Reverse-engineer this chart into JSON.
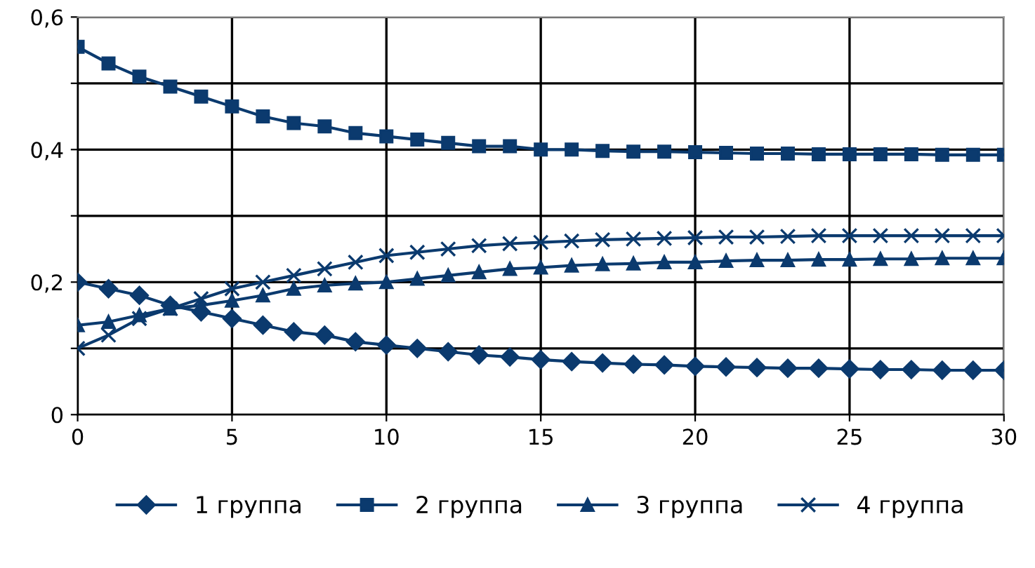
{
  "chart_data": {
    "type": "line",
    "x": [
      0,
      1,
      2,
      3,
      4,
      5,
      6,
      7,
      8,
      9,
      10,
      11,
      12,
      13,
      14,
      15,
      16,
      17,
      18,
      19,
      20,
      21,
      22,
      23,
      24,
      25,
      26,
      27,
      28,
      29,
      30
    ],
    "series": [
      {
        "name": "1 группа",
        "color": "#0b3a6e",
        "marker": "diamond",
        "values": [
          0.2,
          0.19,
          0.18,
          0.165,
          0.155,
          0.145,
          0.135,
          0.125,
          0.12,
          0.11,
          0.105,
          0.1,
          0.095,
          0.09,
          0.087,
          0.083,
          0.08,
          0.078,
          0.076,
          0.075,
          0.073,
          0.072,
          0.071,
          0.07,
          0.07,
          0.069,
          0.068,
          0.068,
          0.067,
          0.067,
          0.067
        ]
      },
      {
        "name": "2 группа",
        "color": "#0b3a6e",
        "marker": "square",
        "values": [
          0.555,
          0.53,
          0.51,
          0.495,
          0.48,
          0.465,
          0.45,
          0.44,
          0.435,
          0.425,
          0.42,
          0.415,
          0.41,
          0.405,
          0.405,
          0.4,
          0.4,
          0.398,
          0.397,
          0.397,
          0.396,
          0.395,
          0.394,
          0.394,
          0.393,
          0.393,
          0.393,
          0.393,
          0.392,
          0.392,
          0.392
        ]
      },
      {
        "name": "3 группа",
        "color": "#0b3a6e",
        "marker": "triangle",
        "values": [
          0.135,
          0.14,
          0.15,
          0.16,
          0.165,
          0.172,
          0.18,
          0.19,
          0.195,
          0.198,
          0.2,
          0.205,
          0.21,
          0.215,
          0.22,
          0.222,
          0.225,
          0.227,
          0.228,
          0.23,
          0.23,
          0.232,
          0.233,
          0.233,
          0.234,
          0.234,
          0.235,
          0.235,
          0.236,
          0.236,
          0.236
        ]
      },
      {
        "name": "4 группа",
        "color": "#0b3a6e",
        "marker": "cross",
        "values": [
          0.1,
          0.12,
          0.145,
          0.16,
          0.175,
          0.19,
          0.2,
          0.21,
          0.22,
          0.23,
          0.24,
          0.245,
          0.25,
          0.255,
          0.258,
          0.26,
          0.262,
          0.264,
          0.265,
          0.266,
          0.267,
          0.268,
          0.268,
          0.269,
          0.27,
          0.27,
          0.27,
          0.27,
          0.27,
          0.27,
          0.27
        ]
      }
    ],
    "xlim": [
      0,
      30
    ],
    "xticks": [
      0,
      5,
      10,
      15,
      20,
      25,
      30
    ],
    "ylim": [
      0,
      0.6
    ],
    "yticks": [
      {
        "value": 0,
        "label": "0"
      },
      {
        "value": 0.1,
        "label": null
      },
      {
        "value": 0.2,
        "label": "0,2"
      },
      {
        "value": 0.3,
        "label": null
      },
      {
        "value": 0.4,
        "label": "0,4"
      },
      {
        "value": 0.5,
        "label": null
      },
      {
        "value": 0.6,
        "label": "0,6"
      }
    ],
    "grid": true,
    "legend": "bottom",
    "line_style": "solid"
  }
}
